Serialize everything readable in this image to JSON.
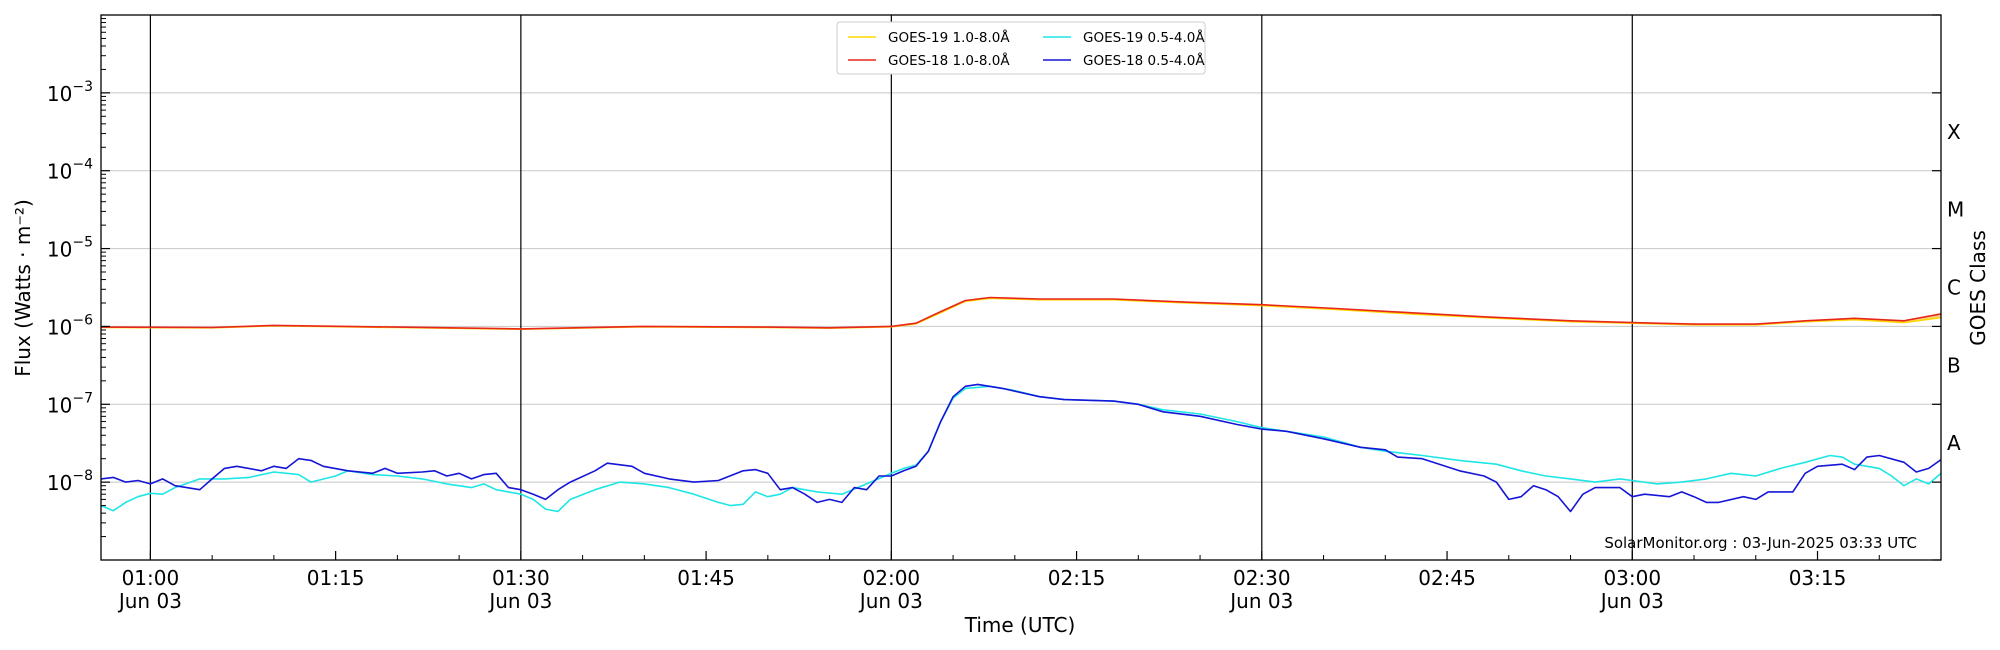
{
  "chart_data": {
    "type": "line",
    "xlabel": "Time (UTC)",
    "ylabel": "Flux (Watts · m⁻²)",
    "ylabel_right": "GOES Class",
    "y_scale": "log",
    "xlim": [
      "00:56",
      "03:25"
    ],
    "ylim": [
      1e-09,
      0.01
    ],
    "grid": "horizontal at each decade",
    "legend_position": "top-center",
    "watermark": "SolarMonitor.org : 03-Jun-2025 03:33 UTC",
    "x_ticks": [
      {
        "time": "01:00",
        "label": "01:00",
        "sublabel": "Jun 03"
      },
      {
        "time": "01:15",
        "label": "01:15",
        "sublabel": ""
      },
      {
        "time": "01:30",
        "label": "01:30",
        "sublabel": "Jun 03"
      },
      {
        "time": "01:45",
        "label": "01:45",
        "sublabel": ""
      },
      {
        "time": "02:00",
        "label": "02:00",
        "sublabel": "Jun 03"
      },
      {
        "time": "02:15",
        "label": "02:15",
        "sublabel": ""
      },
      {
        "time": "02:30",
        "label": "02:30",
        "sublabel": "Jun 03"
      },
      {
        "time": "02:45",
        "label": "02:45",
        "sublabel": ""
      },
      {
        "time": "03:00",
        "label": "03:00",
        "sublabel": "Jun 03"
      },
      {
        "time": "03:15",
        "label": "03:15",
        "sublabel": ""
      }
    ],
    "vertical_lines_at": [
      "01:00",
      "01:30",
      "02:00",
      "02:30",
      "03:00"
    ],
    "y_ticks": [
      {
        "exp": -8,
        "label": "10",
        "sup": "−8"
      },
      {
        "exp": -7,
        "label": "10",
        "sup": "−7"
      },
      {
        "exp": -6,
        "label": "10",
        "sup": "−6"
      },
      {
        "exp": -5,
        "label": "10",
        "sup": "−5"
      },
      {
        "exp": -4,
        "label": "10",
        "sup": "−4"
      },
      {
        "exp": -3,
        "label": "10",
        "sup": "−3"
      }
    ],
    "goes_classes": [
      {
        "label": "A",
        "exp": -7.5
      },
      {
        "label": "B",
        "exp": -6.5
      },
      {
        "label": "C",
        "exp": -5.5
      },
      {
        "label": "M",
        "exp": -4.5
      },
      {
        "label": "X",
        "exp": -3.5
      }
    ],
    "series": [
      {
        "name": "GOES-19 1.0-8.0Å",
        "color": "#ffd700",
        "points": [
          [
            "00:56",
            9.7e-07
          ],
          [
            "01:05",
            9.6e-07
          ],
          [
            "01:10",
            1.02e-06
          ],
          [
            "01:20",
            9.7e-07
          ],
          [
            "01:30",
            9.2e-07
          ],
          [
            "01:40",
            9.9e-07
          ],
          [
            "01:50",
            9.7e-07
          ],
          [
            "01:55",
            9.5e-07
          ],
          [
            "02:00",
            9.9e-07
          ],
          [
            "02:02",
            1.08e-06
          ],
          [
            "02:04",
            1.5e-06
          ],
          [
            "02:06",
            2.1e-06
          ],
          [
            "02:08",
            2.3e-06
          ],
          [
            "02:12",
            2.2e-06
          ],
          [
            "02:18",
            2.2e-06
          ],
          [
            "02:24",
            2e-06
          ],
          [
            "02:30",
            1.85e-06
          ],
          [
            "02:36",
            1.65e-06
          ],
          [
            "02:42",
            1.45e-06
          ],
          [
            "02:48",
            1.3e-06
          ],
          [
            "02:55",
            1.15e-06
          ],
          [
            "03:00",
            1.1e-06
          ],
          [
            "03:05",
            1.05e-06
          ],
          [
            "03:10",
            1.05e-06
          ],
          [
            "03:14",
            1.15e-06
          ],
          [
            "03:18",
            1.22e-06
          ],
          [
            "03:22",
            1.12e-06
          ],
          [
            "03:25",
            1.3e-06
          ]
        ]
      },
      {
        "name": "GOES-18 1.0-8.0Å",
        "color": "#e8261a",
        "points": [
          [
            "00:56",
            9.8e-07
          ],
          [
            "01:05",
            9.7e-07
          ],
          [
            "01:10",
            1.03e-06
          ],
          [
            "01:20",
            9.8e-07
          ],
          [
            "01:30",
            9.3e-07
          ],
          [
            "01:40",
            1e-06
          ],
          [
            "01:50",
            9.8e-07
          ],
          [
            "01:55",
            9.6e-07
          ],
          [
            "02:00",
            1e-06
          ],
          [
            "02:02",
            1.1e-06
          ],
          [
            "02:04",
            1.55e-06
          ],
          [
            "02:06",
            2.15e-06
          ],
          [
            "02:08",
            2.35e-06
          ],
          [
            "02:12",
            2.25e-06
          ],
          [
            "02:18",
            2.25e-06
          ],
          [
            "02:24",
            2.05e-06
          ],
          [
            "02:30",
            1.9e-06
          ],
          [
            "02:36",
            1.7e-06
          ],
          [
            "02:42",
            1.5e-06
          ],
          [
            "02:48",
            1.33e-06
          ],
          [
            "02:55",
            1.18e-06
          ],
          [
            "03:00",
            1.12e-06
          ],
          [
            "03:05",
            1.07e-06
          ],
          [
            "03:10",
            1.07e-06
          ],
          [
            "03:14",
            1.18e-06
          ],
          [
            "03:18",
            1.27e-06
          ],
          [
            "03:22",
            1.18e-06
          ],
          [
            "03:25",
            1.45e-06
          ]
        ]
      },
      {
        "name": "GOES-19 0.5-4.0Å",
        "color": "#1ee6e6",
        "points": [
          [
            "00:56",
            5e-09
          ],
          [
            "00:57",
            4.3e-09
          ],
          [
            "00:58",
            5.5e-09
          ],
          [
            "00:59",
            6.5e-09
          ],
          [
            "01:00",
            7.2e-09
          ],
          [
            "01:01",
            7e-09
          ],
          [
            "01:02",
            8.5e-09
          ],
          [
            "01:04",
            1.1e-08
          ],
          [
            "01:06",
            1.1e-08
          ],
          [
            "01:08",
            1.15e-08
          ],
          [
            "01:10",
            1.35e-08
          ],
          [
            "01:12",
            1.25e-08
          ],
          [
            "01:13",
            1e-08
          ],
          [
            "01:15",
            1.2e-08
          ],
          [
            "01:16",
            1.4e-08
          ],
          [
            "01:18",
            1.25e-08
          ],
          [
            "01:20",
            1.2e-08
          ],
          [
            "01:22",
            1.1e-08
          ],
          [
            "01:24",
            9.5e-09
          ],
          [
            "01:26",
            8.5e-09
          ],
          [
            "01:27",
            9.5e-09
          ],
          [
            "01:28",
            8e-09
          ],
          [
            "01:29",
            7.5e-09
          ],
          [
            "01:30",
            7e-09
          ],
          [
            "01:31",
            6e-09
          ],
          [
            "01:32",
            4.5e-09
          ],
          [
            "01:33",
            4.2e-09
          ],
          [
            "01:34",
            6e-09
          ],
          [
            "01:36",
            8e-09
          ],
          [
            "01:38",
            1e-08
          ],
          [
            "01:40",
            9.5e-09
          ],
          [
            "01:42",
            8.5e-09
          ],
          [
            "01:44",
            7e-09
          ],
          [
            "01:46",
            5.5e-09
          ],
          [
            "01:47",
            5e-09
          ],
          [
            "01:48",
            5.2e-09
          ],
          [
            "01:49",
            7.5e-09
          ],
          [
            "01:50",
            6.5e-09
          ],
          [
            "01:51",
            7e-09
          ],
          [
            "01:52",
            8.5e-09
          ],
          [
            "01:54",
            7.5e-09
          ],
          [
            "01:56",
            7e-09
          ],
          [
            "01:58",
            9.5e-09
          ],
          [
            "02:00",
            1.3e-08
          ],
          [
            "02:01",
            1.5e-08
          ],
          [
            "02:02",
            1.65e-08
          ],
          [
            "02:03",
            2.5e-08
          ],
          [
            "02:04",
            6e-08
          ],
          [
            "02:05",
            1.2e-07
          ],
          [
            "02:06",
            1.6e-07
          ],
          [
            "02:08",
            1.7e-07
          ],
          [
            "02:10",
            1.5e-07
          ],
          [
            "02:12",
            1.25e-07
          ],
          [
            "02:14",
            1.15e-07
          ],
          [
            "02:18",
            1.1e-07
          ],
          [
            "02:20",
            1e-07
          ],
          [
            "02:22",
            8.5e-08
          ],
          [
            "02:25",
            7.5e-08
          ],
          [
            "02:28",
            6e-08
          ],
          [
            "02:30",
            5e-08
          ],
          [
            "02:32",
            4.5e-08
          ],
          [
            "02:35",
            3.8e-08
          ],
          [
            "02:38",
            2.8e-08
          ],
          [
            "02:40",
            2.5e-08
          ],
          [
            "02:43",
            2.2e-08
          ],
          [
            "02:46",
            1.9e-08
          ],
          [
            "02:49",
            1.7e-08
          ],
          [
            "02:51",
            1.4e-08
          ],
          [
            "02:53",
            1.2e-08
          ],
          [
            "02:55",
            1.1e-08
          ],
          [
            "02:57",
            1e-08
          ],
          [
            "02:59",
            1.1e-08
          ],
          [
            "03:00",
            1.05e-08
          ],
          [
            "03:02",
            9.5e-09
          ],
          [
            "03:04",
            1e-08
          ],
          [
            "03:06",
            1.1e-08
          ],
          [
            "03:08",
            1.3e-08
          ],
          [
            "03:10",
            1.2e-08
          ],
          [
            "03:12",
            1.5e-08
          ],
          [
            "03:14",
            1.8e-08
          ],
          [
            "03:16",
            2.2e-08
          ],
          [
            "03:17",
            2.1e-08
          ],
          [
            "03:18",
            1.7e-08
          ],
          [
            "03:20",
            1.5e-08
          ],
          [
            "03:21",
            1.2e-08
          ],
          [
            "03:22",
            9e-09
          ],
          [
            "03:23",
            1.1e-08
          ],
          [
            "03:24",
            9.5e-09
          ],
          [
            "03:25",
            1.3e-08
          ]
        ]
      },
      {
        "name": "GOES-18 0.5-4.0Å",
        "color": "#1515d8",
        "points": [
          [
            "00:56",
            1.1e-08
          ],
          [
            "00:57",
            1.15e-08
          ],
          [
            "00:58",
            1e-08
          ],
          [
            "00:59",
            1.05e-08
          ],
          [
            "01:00",
            9.5e-09
          ],
          [
            "01:01",
            1.1e-08
          ],
          [
            "01:02",
            9e-09
          ],
          [
            "01:04",
            8e-09
          ],
          [
            "01:05",
            1.1e-08
          ],
          [
            "01:06",
            1.5e-08
          ],
          [
            "01:07",
            1.6e-08
          ],
          [
            "01:09",
            1.4e-08
          ],
          [
            "01:10",
            1.6e-08
          ],
          [
            "01:11",
            1.5e-08
          ],
          [
            "01:12",
            2e-08
          ],
          [
            "01:13",
            1.9e-08
          ],
          [
            "01:14",
            1.6e-08
          ],
          [
            "01:16",
            1.4e-08
          ],
          [
            "01:18",
            1.3e-08
          ],
          [
            "01:19",
            1.5e-08
          ],
          [
            "01:20",
            1.3e-08
          ],
          [
            "01:22",
            1.35e-08
          ],
          [
            "01:23",
            1.4e-08
          ],
          [
            "01:24",
            1.2e-08
          ],
          [
            "01:25",
            1.3e-08
          ],
          [
            "01:26",
            1.1e-08
          ],
          [
            "01:27",
            1.25e-08
          ],
          [
            "01:28",
            1.3e-08
          ],
          [
            "01:29",
            8.5e-09
          ],
          [
            "01:30",
            8e-09
          ],
          [
            "01:31",
            7e-09
          ],
          [
            "01:32",
            6e-09
          ],
          [
            "01:33",
            8e-09
          ],
          [
            "01:34",
            1e-08
          ],
          [
            "01:36",
            1.4e-08
          ],
          [
            "01:37",
            1.75e-08
          ],
          [
            "01:39",
            1.6e-08
          ],
          [
            "01:40",
            1.3e-08
          ],
          [
            "01:42",
            1.1e-08
          ],
          [
            "01:44",
            1e-08
          ],
          [
            "01:46",
            1.05e-08
          ],
          [
            "01:48",
            1.4e-08
          ],
          [
            "01:49",
            1.45e-08
          ],
          [
            "01:50",
            1.3e-08
          ],
          [
            "01:51",
            8e-09
          ],
          [
            "01:52",
            8.5e-09
          ],
          [
            "01:53",
            7e-09
          ],
          [
            "01:54",
            5.5e-09
          ],
          [
            "01:55",
            6e-09
          ],
          [
            "01:56",
            5.5e-09
          ],
          [
            "01:57",
            8.5e-09
          ],
          [
            "01:58",
            8e-09
          ],
          [
            "01:59",
            1.2e-08
          ],
          [
            "02:00",
            1.2e-08
          ],
          [
            "02:01",
            1.4e-08
          ],
          [
            "02:02",
            1.6e-08
          ],
          [
            "02:03",
            2.5e-08
          ],
          [
            "02:04",
            6e-08
          ],
          [
            "02:05",
            1.25e-07
          ],
          [
            "02:06",
            1.7e-07
          ],
          [
            "02:07",
            1.8e-07
          ],
          [
            "02:09",
            1.6e-07
          ],
          [
            "02:12",
            1.25e-07
          ],
          [
            "02:14",
            1.15e-07
          ],
          [
            "02:18",
            1.1e-07
          ],
          [
            "02:20",
            1e-07
          ],
          [
            "02:22",
            8e-08
          ],
          [
            "02:25",
            7e-08
          ],
          [
            "02:28",
            5.5e-08
          ],
          [
            "02:30",
            4.8e-08
          ],
          [
            "02:32",
            4.5e-08
          ],
          [
            "02:35",
            3.6e-08
          ],
          [
            "02:38",
            2.8e-08
          ],
          [
            "02:40",
            2.6e-08
          ],
          [
            "02:41",
            2.1e-08
          ],
          [
            "02:43",
            2e-08
          ],
          [
            "02:46",
            1.4e-08
          ],
          [
            "02:48",
            1.2e-08
          ],
          [
            "02:49",
            1e-08
          ],
          [
            "02:50",
            6e-09
          ],
          [
            "02:51",
            6.5e-09
          ],
          [
            "02:52",
            9e-09
          ],
          [
            "02:53",
            8e-09
          ],
          [
            "02:54",
            6.5e-09
          ],
          [
            "02:55",
            4.2e-09
          ],
          [
            "02:56",
            7e-09
          ],
          [
            "02:57",
            8.5e-09
          ],
          [
            "02:59",
            8.5e-09
          ],
          [
            "03:00",
            6.5e-09
          ],
          [
            "03:01",
            7e-09
          ],
          [
            "03:03",
            6.5e-09
          ],
          [
            "03:04",
            7.5e-09
          ],
          [
            "03:05",
            6.5e-09
          ],
          [
            "03:06",
            5.5e-09
          ],
          [
            "03:07",
            5.5e-09
          ],
          [
            "03:09",
            6.5e-09
          ],
          [
            "03:10",
            6e-09
          ],
          [
            "03:11",
            7.5e-09
          ],
          [
            "03:13",
            7.5e-09
          ],
          [
            "03:14",
            1.3e-08
          ],
          [
            "03:15",
            1.6e-08
          ],
          [
            "03:17",
            1.7e-08
          ],
          [
            "03:18",
            1.45e-08
          ],
          [
            "03:19",
            2.1e-08
          ],
          [
            "03:20",
            2.2e-08
          ],
          [
            "03:22",
            1.8e-08
          ],
          [
            "03:23",
            1.35e-08
          ],
          [
            "03:24",
            1.5e-08
          ],
          [
            "03:25",
            1.95e-08
          ]
        ]
      }
    ]
  }
}
